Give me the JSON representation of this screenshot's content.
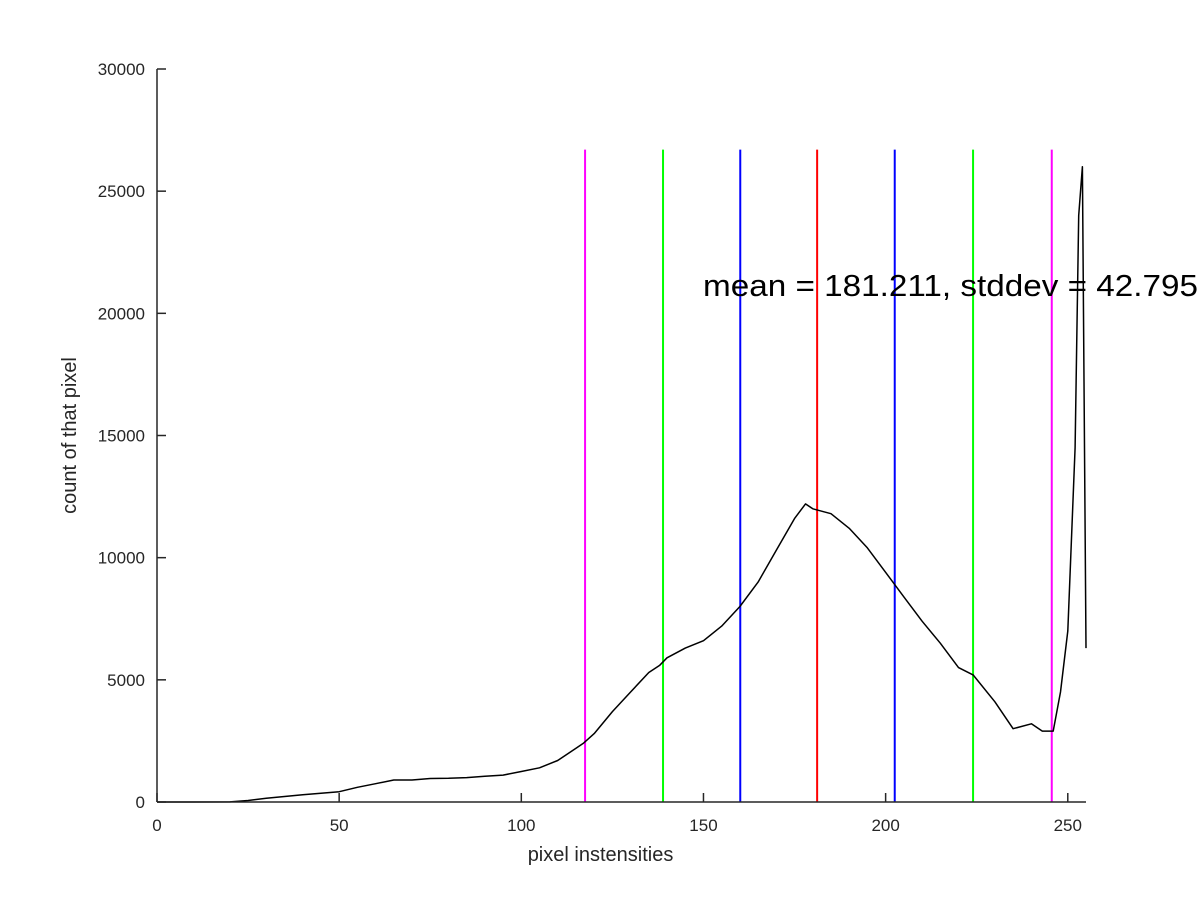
{
  "chart_data": {
    "type": "line",
    "title": "",
    "xlabel": "pixel instensities",
    "ylabel": "count of that pixel",
    "xlim": [
      0,
      255
    ],
    "ylim": [
      0,
      30000
    ],
    "xticks": [
      0,
      50,
      100,
      150,
      200,
      250
    ],
    "yticks": [
      0,
      5000,
      10000,
      15000,
      20000,
      25000,
      30000
    ],
    "grid": false,
    "annotation": "mean = 181.211, stddev = 42.795",
    "series": [
      {
        "color": "#000000",
        "x": [
          0,
          10,
          20,
          25,
          30,
          40,
          50,
          55,
          60,
          65,
          70,
          75,
          80,
          85,
          90,
          95,
          100,
          105,
          110,
          115,
          117,
          120,
          125,
          130,
          135,
          138,
          140,
          145,
          150,
          155,
          160,
          165,
          170,
          175,
          178,
          180,
          185,
          190,
          195,
          200,
          205,
          210,
          215,
          220,
          224,
          230,
          235,
          240,
          243,
          246,
          248,
          250,
          252,
          253,
          254,
          255
        ],
        "y": [
          0,
          0,
          5,
          60,
          150,
          300,
          420,
          600,
          750,
          900,
          900,
          960,
          970,
          1000,
          1050,
          1100,
          1250,
          1400,
          1700,
          2200,
          2400,
          2800,
          3700,
          4500,
          5300,
          5600,
          5900,
          6300,
          6600,
          7200,
          8000,
          9000,
          10300,
          11600,
          12200,
          12000,
          11800,
          11200,
          10400,
          9400,
          8400,
          7400,
          6500,
          5500,
          5200,
          4100,
          3000,
          3200,
          2900,
          2900,
          4500,
          7000,
          14500,
          24000,
          26000,
          6300
        ]
      }
    ],
    "vlines": [
      {
        "x": 117.5,
        "color": "#ff00ff"
      },
      {
        "x": 138.9,
        "color": "#00ff00"
      },
      {
        "x": 160.1,
        "color": "#0000ff"
      },
      {
        "x": 181.2,
        "color": "#ff0000"
      },
      {
        "x": 202.5,
        "color": "#0000ff"
      },
      {
        "x": 224.0,
        "color": "#00ff00"
      },
      {
        "x": 245.6,
        "color": "#ff00ff"
      }
    ],
    "vline_y_top": 26700
  }
}
